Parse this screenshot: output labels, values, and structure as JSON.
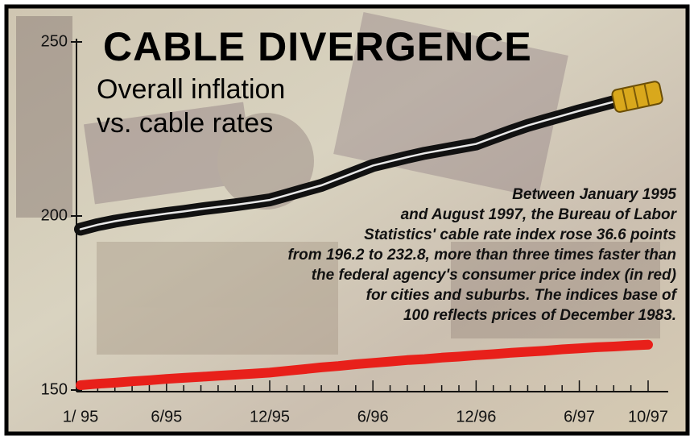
{
  "chart_data": {
    "type": "line",
    "title": "CABLE DIVERGENCE",
    "subtitle_lines": [
      "Overall inflation",
      "vs. cable rates"
    ],
    "annotation_lines": [
      "Between January 1995",
      "and August 1997, the Bureau of Labor",
      "Statistics' cable rate index rose 36.6 points",
      "from 196.2 to 232.8, more than three times faster than",
      "the federal agency's consumer price index (in red)",
      "for cities and suburbs. The indices base of",
      "100 reflects prices of December 1983."
    ],
    "categories": [
      "1/ 95",
      null,
      null,
      null,
      null,
      "6/95",
      null,
      null,
      null,
      null,
      null,
      "12/95",
      null,
      null,
      null,
      null,
      null,
      "6/96",
      null,
      null,
      null,
      null,
      null,
      "12/96",
      null,
      null,
      null,
      null,
      null,
      "6/97",
      null,
      null,
      null,
      "10/97"
    ],
    "series": [
      {
        "color": "#111111",
        "values": [
          196.2,
          197.5,
          198.5,
          199.3,
          200,
          200.7,
          201.3,
          202,
          202.6,
          203.2,
          203.9,
          204.6,
          206,
          207.4,
          208.8,
          210.7,
          212.6,
          214.5,
          215.7,
          216.9,
          218,
          218.9,
          219.8,
          220.7,
          222.5,
          224.3,
          226,
          227.4,
          228.8,
          230.2,
          231.5,
          232.8,
          null,
          null
        ]
      },
      {
        "color": "#e8201a",
        "values": [
          151.4,
          151.8,
          152.1,
          152.5,
          152.8,
          153.2,
          153.5,
          153.8,
          154.1,
          154.4,
          154.7,
          155,
          155.5,
          156,
          156.5,
          156.9,
          157.4,
          157.8,
          158.2,
          158.6,
          158.9,
          159.3,
          159.6,
          160,
          160.3,
          160.7,
          161,
          161.3,
          161.7,
          162,
          162.3,
          162.5,
          162.8,
          163
        ]
      }
    ],
    "ylim": [
      150,
      250
    ],
    "yticks": [
      150,
      200,
      250
    ]
  }
}
